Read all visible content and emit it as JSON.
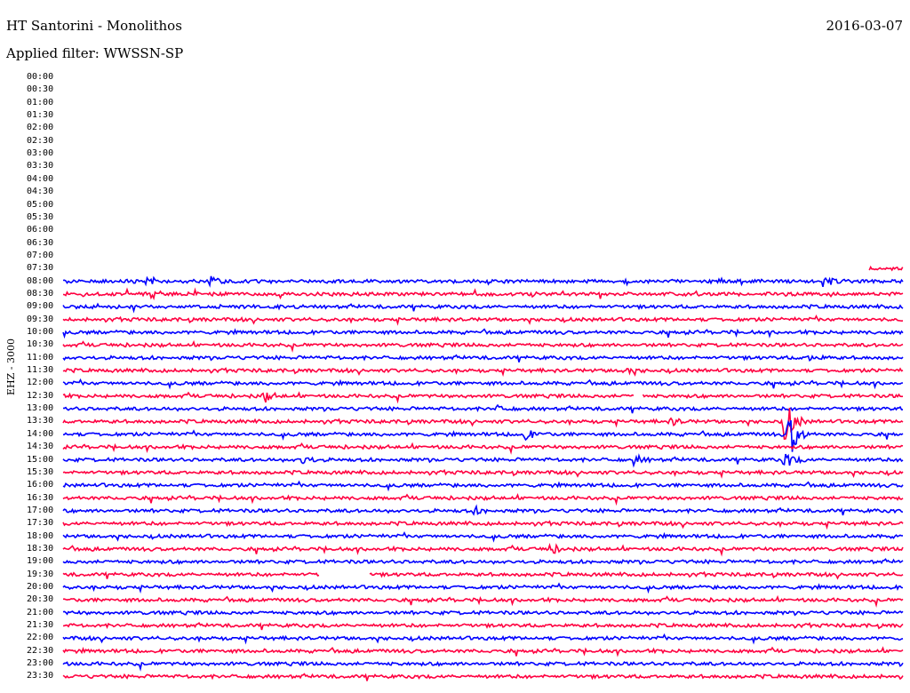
{
  "header": {
    "station": "HT Santorini - Monolithos",
    "date": "2016-03-07",
    "filter_text": "Applied filter: WWSSN-SP"
  },
  "chart_data": {
    "type": "line",
    "ylabel": "EHZ - 3000",
    "row_labels": [
      "00:00",
      "00:30",
      "01:00",
      "01:30",
      "02:00",
      "02:30",
      "03:00",
      "03:30",
      "04:00",
      "04:30",
      "05:00",
      "05:30",
      "06:00",
      "06:30",
      "07:00",
      "07:30",
      "08:00",
      "08:30",
      "09:00",
      "09:30",
      "10:00",
      "10:30",
      "11:00",
      "11:30",
      "12:00",
      "12:30",
      "13:00",
      "13:30",
      "14:00",
      "14:30",
      "15:00",
      "15:30",
      "16:00",
      "16:30",
      "17:00",
      "17:30",
      "18:00",
      "18:30",
      "19:00",
      "19:30",
      "20:00",
      "20:30",
      "21:00",
      "21:30",
      "22:00",
      "22:30",
      "23:00",
      "23:30"
    ],
    "colors": {
      "even_row": "#0000ff",
      "odd_row": "#ff0040"
    },
    "x_range_minutes": [
      0,
      30
    ],
    "partial_row": {
      "row": "07:30",
      "start_fraction": 0.96
    },
    "gaps": [
      {
        "row": "12:30",
        "start_fraction": 0.68,
        "end_fraction": 0.69
      },
      {
        "row": "19:30",
        "start_fraction": 0.305,
        "end_fraction": 0.365
      }
    ],
    "events": [
      {
        "row": "08:00",
        "position": 0.1,
        "amplitude": 5
      },
      {
        "row": "08:00",
        "position": 0.175,
        "amplitude": 5
      },
      {
        "row": "08:00",
        "position": 0.905,
        "amplitude": 6
      },
      {
        "row": "08:30",
        "position": 0.105,
        "amplitude": 6
      },
      {
        "row": "11:00",
        "position": 0.89,
        "amplitude": 5
      },
      {
        "row": "11:30",
        "position": 0.67,
        "amplitude": 4
      },
      {
        "row": "12:30",
        "position": 0.24,
        "amplitude": 6
      },
      {
        "row": "13:00",
        "position": 0.515,
        "amplitude": 3
      },
      {
        "row": "13:30",
        "position": 0.725,
        "amplitude": 4
      },
      {
        "row": "13:30",
        "position": 0.86,
        "amplitude": 28
      },
      {
        "row": "14:00",
        "position": 0.55,
        "amplitude": 6
      },
      {
        "row": "14:00",
        "position": 0.865,
        "amplitude": 30
      },
      {
        "row": "15:00",
        "position": 0.285,
        "amplitude": 6
      },
      {
        "row": "15:00",
        "position": 0.68,
        "amplitude": 6
      },
      {
        "row": "15:00",
        "position": 0.86,
        "amplitude": 10
      },
      {
        "row": "17:00",
        "position": 0.49,
        "amplitude": 4
      },
      {
        "row": "18:30",
        "position": 0.58,
        "amplitude": 6
      }
    ]
  }
}
